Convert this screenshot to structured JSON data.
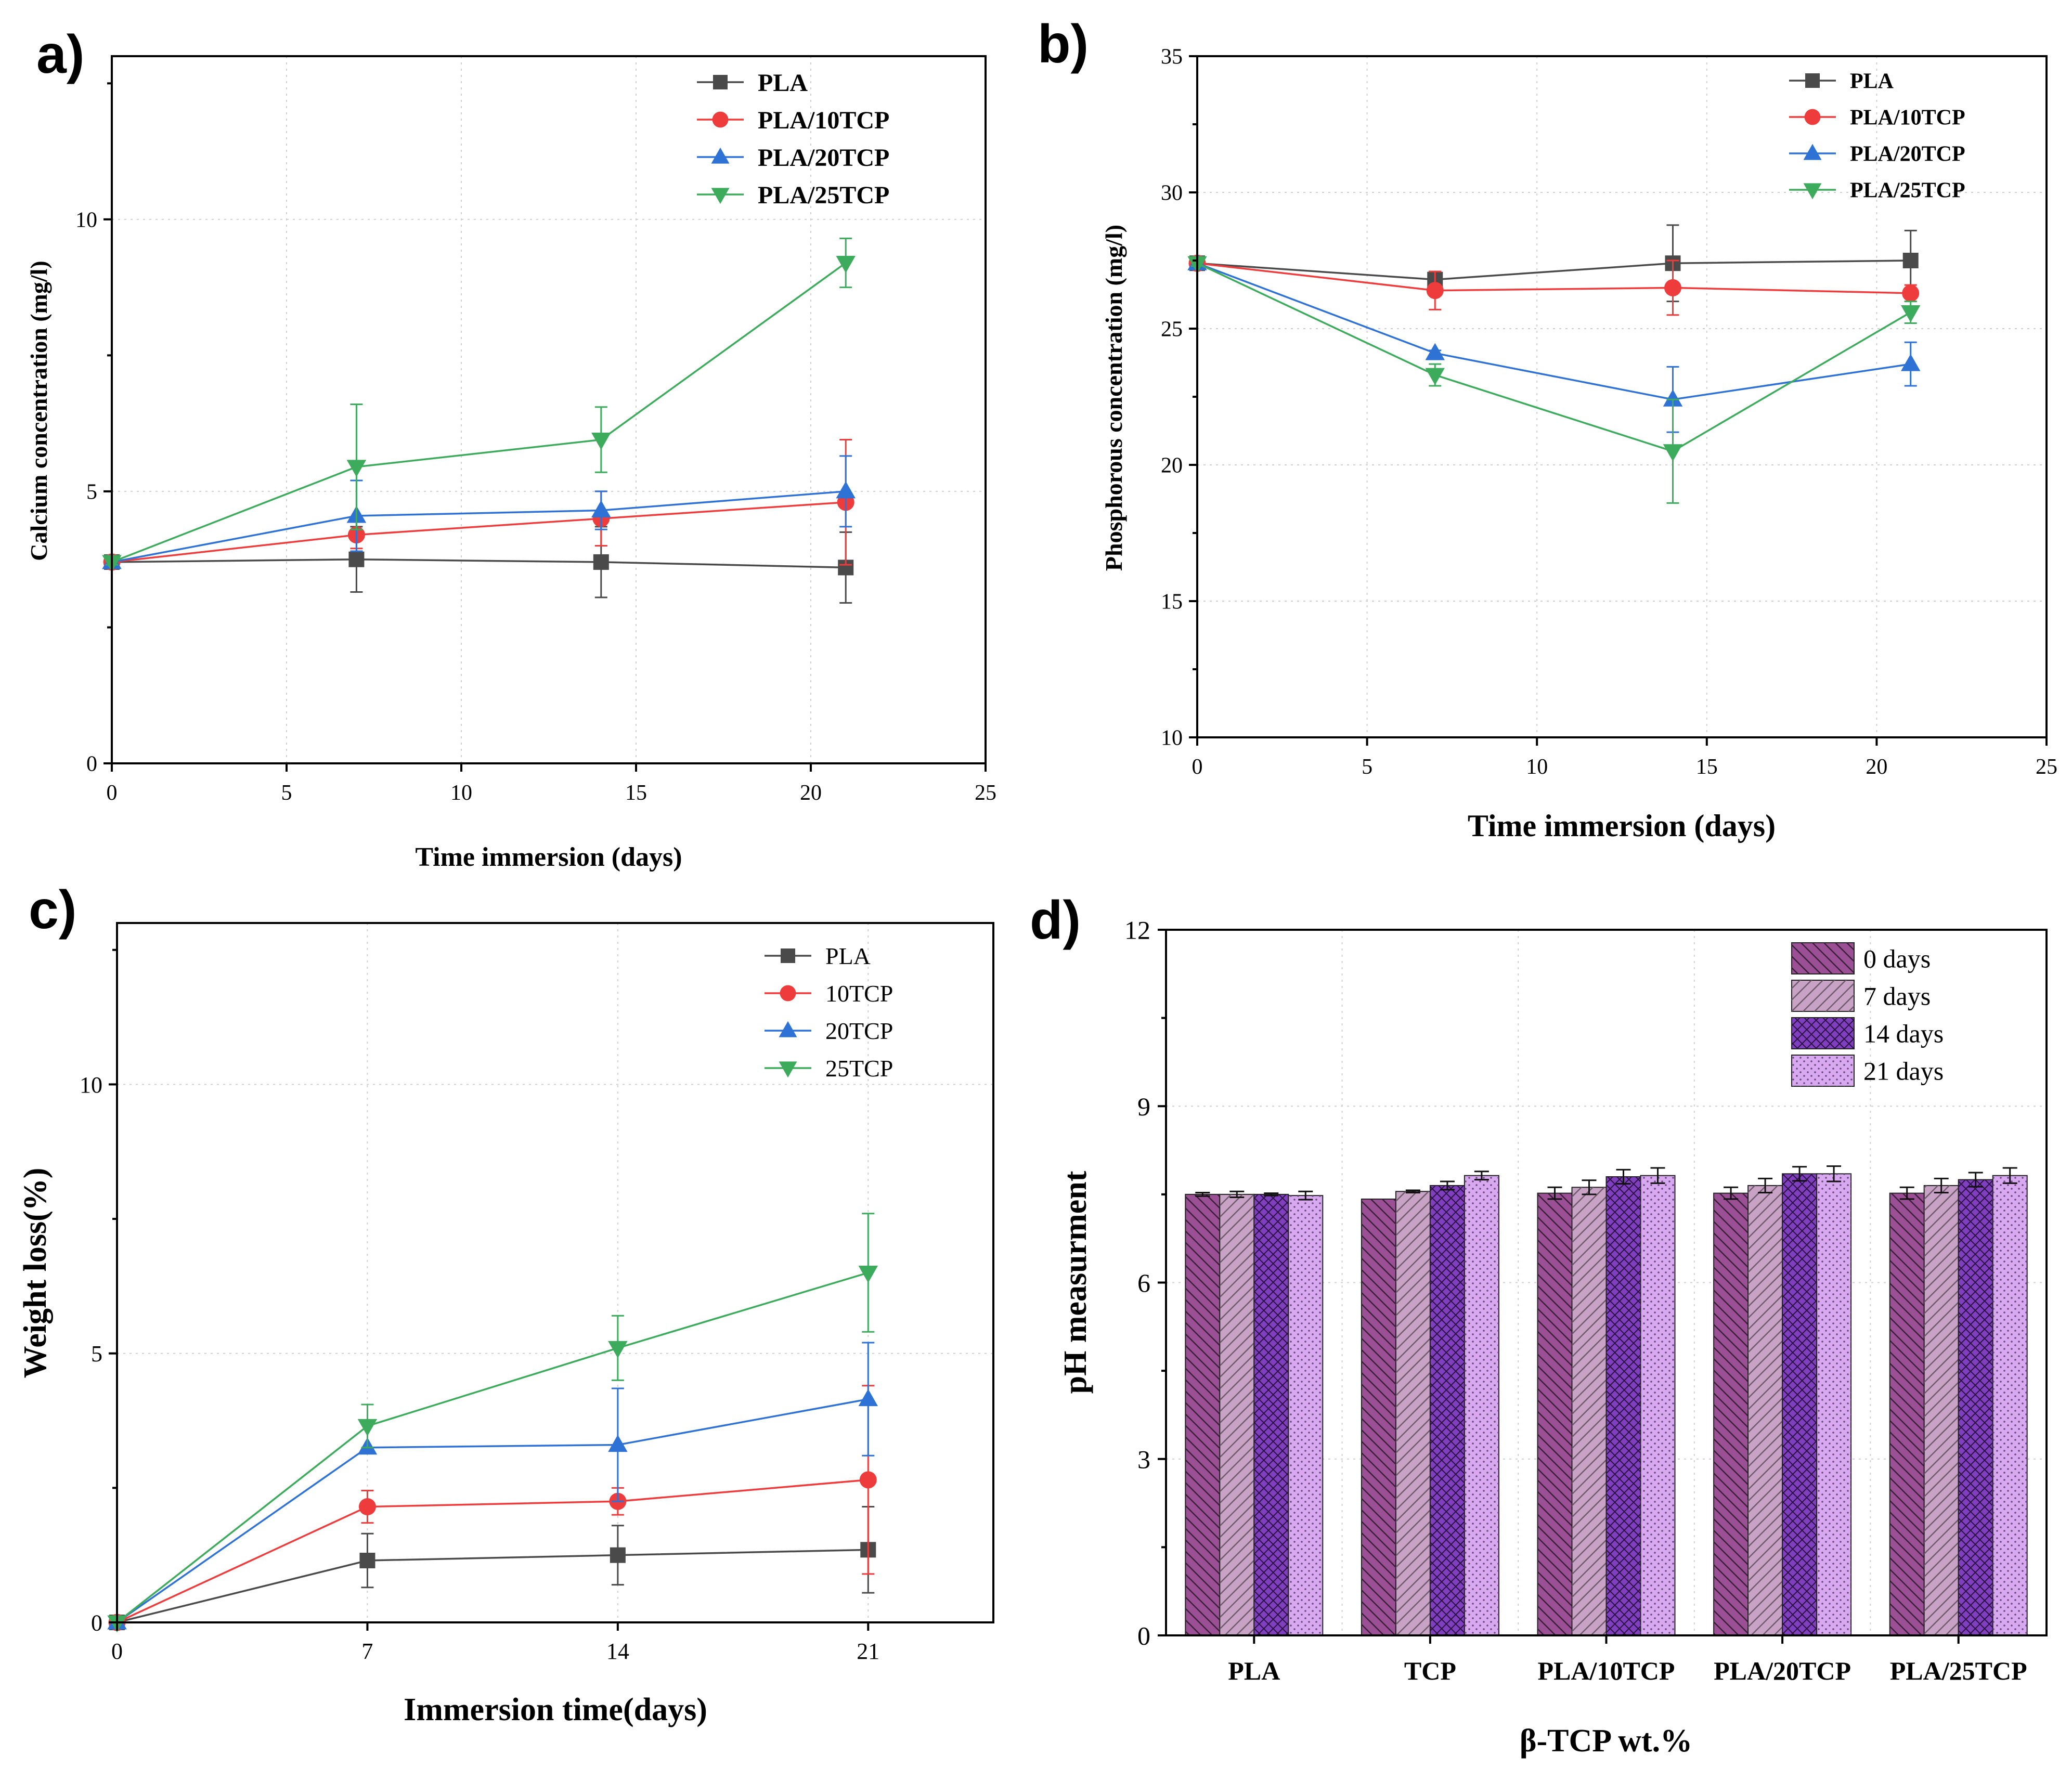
{
  "colors": {
    "pla": "#4a4a4a",
    "tcp10": "#ee3b3b",
    "tcp20": "#2f72d6",
    "tcp25": "#3dab5c",
    "bar_0": "#9b4f95",
    "bar_7": "#c9a3c6",
    "bar_14": "#7f3fbf",
    "bar_21": "#d8a8f0"
  },
  "chart_data": [
    {
      "id": "a",
      "type": "line",
      "panel_label": "a)",
      "title": "",
      "xlabel": "Time immersion (days)",
      "ylabel": "Calcium concentration (mg/l)",
      "xlim": [
        0,
        25
      ],
      "ylim": [
        0,
        13
      ],
      "xticks": [
        0,
        5,
        10,
        15,
        20,
        25
      ],
      "yticks": [
        0,
        5,
        10
      ],
      "x": [
        0,
        7,
        14,
        21
      ],
      "legend_position": "top-right",
      "series": [
        {
          "name": "PLA",
          "marker": "square",
          "color": "#4a4a4a",
          "values": [
            3.7,
            3.75,
            3.7,
            3.6
          ],
          "errors": [
            0.05,
            0.6,
            0.65,
            0.65
          ]
        },
        {
          "name": "PLA/10TCP",
          "marker": "circle",
          "color": "#ee3b3b",
          "values": [
            3.7,
            4.2,
            4.5,
            4.8
          ],
          "errors": [
            0.05,
            0.25,
            0.5,
            1.15
          ]
        },
        {
          "name": "PLA/20TCP",
          "marker": "triangle-up",
          "color": "#2f72d6",
          "values": [
            3.7,
            4.55,
            4.65,
            5.0
          ],
          "errors": [
            0.05,
            0.65,
            0.35,
            0.65
          ]
        },
        {
          "name": "PLA/25TCP",
          "marker": "triangle-down",
          "color": "#3dab5c",
          "values": [
            3.7,
            5.45,
            5.95,
            9.2
          ],
          "errors": [
            0.05,
            1.15,
            0.6,
            0.45
          ]
        }
      ]
    },
    {
      "id": "b",
      "type": "line",
      "panel_label": "b)",
      "title": "",
      "xlabel": "Time immersion (days)",
      "ylabel": "Phosphorous concentration (mg/l)",
      "xlim": [
        0,
        25
      ],
      "ylim": [
        10,
        35
      ],
      "xticks": [
        0,
        5,
        10,
        15,
        20,
        25
      ],
      "yticks": [
        10,
        15,
        20,
        25,
        30,
        35
      ],
      "x": [
        0,
        7,
        14,
        21
      ],
      "legend_position": "top-right",
      "series": [
        {
          "name": "PLA",
          "marker": "square",
          "color": "#4a4a4a",
          "values": [
            27.4,
            26.8,
            27.4,
            27.5
          ],
          "errors": [
            0.1,
            0.3,
            1.4,
            1.1
          ]
        },
        {
          "name": "PLA/10TCP",
          "marker": "circle",
          "color": "#ee3b3b",
          "values": [
            27.4,
            26.4,
            26.5,
            26.3
          ],
          "errors": [
            0.1,
            0.7,
            1.0,
            0.3
          ]
        },
        {
          "name": "PLA/20TCP",
          "marker": "triangle-up",
          "color": "#2f72d6",
          "values": [
            27.4,
            24.1,
            22.4,
            23.7
          ],
          "errors": [
            0.1,
            0.1,
            1.2,
            0.8
          ]
        },
        {
          "name": "PLA/25TCP",
          "marker": "triangle-down",
          "color": "#3dab5c",
          "values": [
            27.4,
            23.3,
            20.5,
            25.6
          ],
          "errors": [
            0.1,
            0.4,
            1.9,
            0.4
          ]
        }
      ]
    },
    {
      "id": "c",
      "type": "line",
      "panel_label": "c)",
      "title": "",
      "xlabel": "Immersion time(days)",
      "ylabel": "Weight loss(%)",
      "xlim": [
        0,
        24.5
      ],
      "ylim": [
        0,
        13
      ],
      "xticks": [
        0,
        7,
        14,
        21
      ],
      "yticks": [
        0,
        5,
        10
      ],
      "x": [
        0,
        7,
        14,
        21
      ],
      "legend_position": "top-right",
      "series": [
        {
          "name": "PLA",
          "marker": "square",
          "color": "#4a4a4a",
          "values": [
            0,
            1.15,
            1.25,
            1.35
          ],
          "errors": [
            0,
            0.5,
            0.55,
            0.8
          ]
        },
        {
          "name": "10TCP",
          "marker": "circle",
          "color": "#ee3b3b",
          "values": [
            0,
            2.15,
            2.25,
            2.65
          ],
          "errors": [
            0,
            0.3,
            0.25,
            1.75
          ]
        },
        {
          "name": "20TCP",
          "marker": "triangle-up",
          "color": "#2f72d6",
          "values": [
            0,
            3.25,
            3.3,
            4.15
          ],
          "errors": [
            0,
            0,
            1.05,
            1.05
          ]
        },
        {
          "name": "25TCP",
          "marker": "triangle-down",
          "color": "#3dab5c",
          "values": [
            0,
            3.65,
            5.1,
            6.5
          ],
          "errors": [
            0,
            0.4,
            0.6,
            1.1
          ]
        }
      ]
    },
    {
      "id": "d",
      "type": "bar",
      "panel_label": "d)",
      "title": "",
      "xlabel": "β-TCP wt.%",
      "ylabel": "pH measurment",
      "ylim": [
        0,
        12
      ],
      "yticks": [
        0,
        3,
        6,
        9,
        12
      ],
      "categories": [
        "PLA",
        "TCP",
        "PLA/10TCP",
        "PLA/20TCP",
        "PLA/25TCP"
      ],
      "legend_position": "top-right",
      "series": [
        {
          "name": "0 days",
          "color": "#9b4f95",
          "pattern": "diag-back",
          "values": [
            7.5,
            7.42,
            7.52,
            7.52,
            7.52
          ],
          "errors": [
            0.03,
            0.0,
            0.1,
            0.1,
            0.1
          ]
        },
        {
          "name": "7 days",
          "color": "#c9a3c6",
          "pattern": "diag-fwd",
          "values": [
            7.5,
            7.55,
            7.62,
            7.65,
            7.65
          ],
          "errors": [
            0.05,
            0.02,
            0.12,
            0.12,
            0.12
          ]
        },
        {
          "name": "14 days",
          "color": "#7f3fbf",
          "pattern": "cross",
          "values": [
            7.5,
            7.65,
            7.8,
            7.85,
            7.75
          ],
          "errors": [
            0.02,
            0.07,
            0.12,
            0.12,
            0.12
          ]
        },
        {
          "name": "21 days",
          "color": "#d8a8f0",
          "pattern": "dots",
          "values": [
            7.48,
            7.82,
            7.82,
            7.85,
            7.82
          ],
          "errors": [
            0.07,
            0.07,
            0.13,
            0.13,
            0.13
          ]
        }
      ]
    }
  ]
}
